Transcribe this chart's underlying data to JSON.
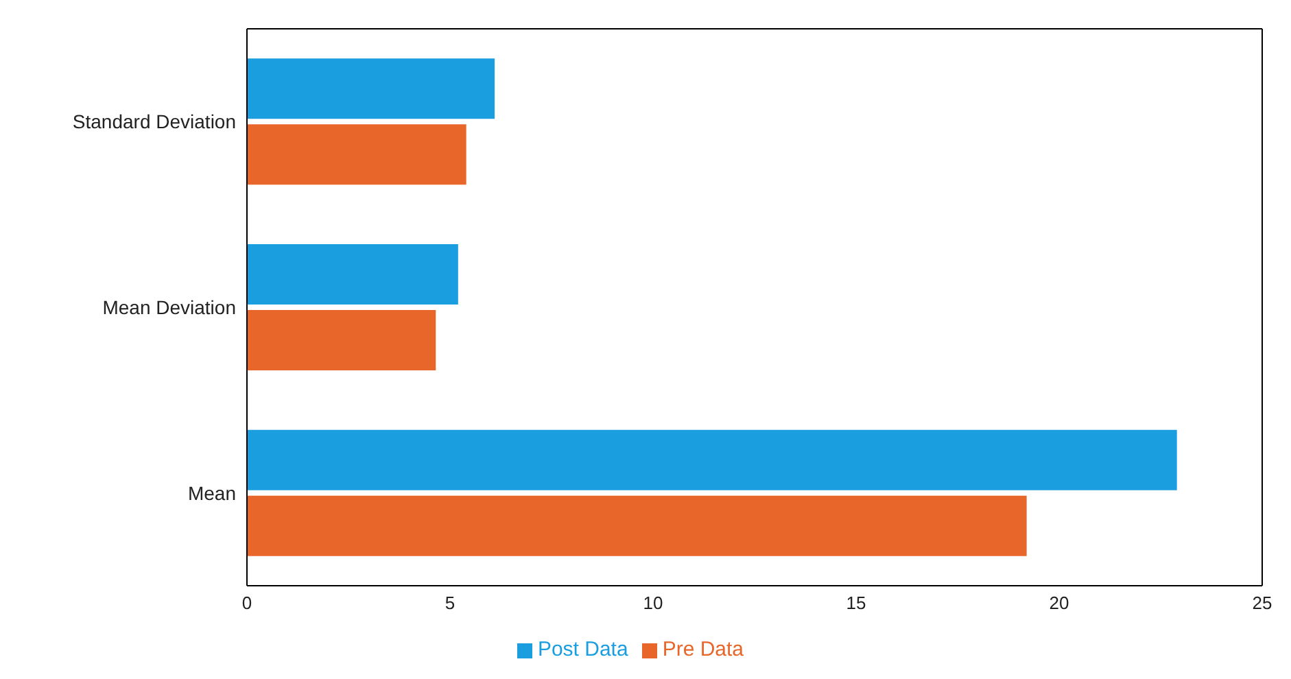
{
  "chart_data": {
    "type": "bar",
    "orientation": "horizontal",
    "categories": [
      "Standard Deviation",
      "Mean Deviation",
      "Mean"
    ],
    "series": [
      {
        "name": "Post Data",
        "color": "#1a9ee0",
        "values": [
          6.1,
          5.2,
          22.9
        ]
      },
      {
        "name": "Pre Data",
        "color": "#e8662a",
        "values": [
          5.4,
          4.65,
          19.2
        ]
      }
    ],
    "xlim": [
      0,
      25
    ],
    "xticks": [
      0,
      5,
      10,
      15,
      20,
      25
    ],
    "grid": false,
    "legend": "bottom"
  }
}
